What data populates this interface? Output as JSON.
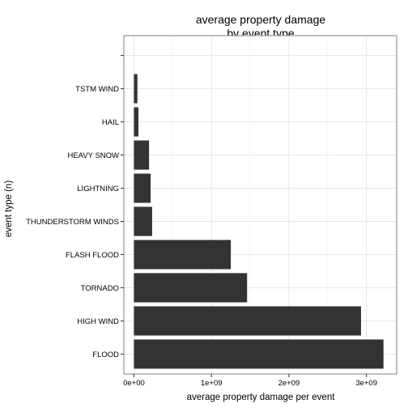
{
  "chart_data": {
    "type": "bar",
    "orientation": "horizontal",
    "title_lines": [
      "average property damage",
      "by event type"
    ],
    "xlabel": "average property damage per event",
    "ylabel": "event type (n)",
    "categories": [
      "FLOOD",
      "HIGH WIND",
      "TORNADO",
      "FLASH FLOOD",
      "THUNDERSTORM WINDS",
      "LIGHTNING",
      "HEAVY SNOW",
      "HAIL",
      "TSTM WIND",
      ""
    ],
    "values": [
      3220000000,
      2930000000,
      1460000000,
      1250000000,
      235000000,
      215000000,
      195000000,
      58000000,
      45000000,
      null
    ],
    "x_ticks": [
      {
        "value": 0,
        "label": "0e+00"
      },
      {
        "value": 1000000000,
        "label": "1e+09"
      },
      {
        "value": 2000000000,
        "label": "2e+09"
      },
      {
        "value": 3000000000,
        "label": "3e+09"
      }
    ],
    "xlim": [
      -130000000,
      3390000000
    ],
    "grid": true,
    "bar_color": "#333333",
    "grid_color": "#e5e5e5",
    "panel_border_color": "#7f7f7f"
  }
}
